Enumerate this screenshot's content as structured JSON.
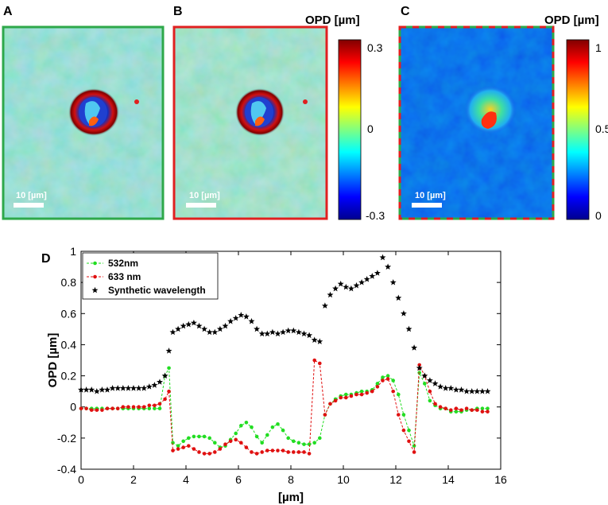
{
  "panels": {
    "a": {
      "letter": "A",
      "scale_bar": "10 [µm]",
      "border_color": "#2ea84a"
    },
    "b": {
      "letter": "B",
      "scale_bar": "10 [µm]",
      "border_color": "#e02020"
    },
    "c": {
      "letter": "C",
      "scale_bar": "10 [µm]",
      "border_colors": [
        "#e02020",
        "#2ea84a"
      ]
    },
    "d": {
      "letter": "D"
    }
  },
  "colorbar_ab": {
    "title": "OPD [µm]",
    "ticks": [
      "0.3",
      "0",
      "-0.3"
    ],
    "range": [
      -0.3,
      0.3
    ]
  },
  "colorbar_c": {
    "title": "OPD [µm]",
    "ticks": [
      "1",
      "0.5",
      "0"
    ],
    "range": [
      0,
      1
    ]
  },
  "chart_data": {
    "type": "line",
    "title": "",
    "xlabel": "[µm]",
    "ylabel": "OPD [µm]",
    "xlim": [
      0,
      16
    ],
    "ylim": [
      -0.4,
      1.0
    ],
    "xticks": [
      0,
      2,
      4,
      6,
      8,
      10,
      12,
      14,
      16
    ],
    "yticks": [
      -0.4,
      -0.2,
      0,
      0.2,
      0.4,
      0.6,
      0.8,
      1
    ],
    "legend_position": "top-left",
    "series": [
      {
        "name": "532nm",
        "color": "#22dd22",
        "marker": "dot",
        "x": [
          0,
          0.2,
          0.4,
          0.6,
          0.8,
          1.0,
          1.2,
          1.4,
          1.6,
          1.8,
          2.0,
          2.2,
          2.4,
          2.6,
          2.8,
          3.0,
          3.2,
          3.35,
          3.5,
          3.7,
          3.9,
          4.1,
          4.3,
          4.5,
          4.7,
          4.9,
          5.1,
          5.3,
          5.5,
          5.7,
          5.9,
          6.1,
          6.3,
          6.5,
          6.7,
          6.9,
          7.1,
          7.3,
          7.5,
          7.7,
          7.9,
          8.1,
          8.3,
          8.5,
          8.7,
          8.9,
          9.1,
          9.3,
          9.5,
          9.7,
          9.9,
          10.1,
          10.3,
          10.5,
          10.7,
          10.9,
          11.1,
          11.3,
          11.5,
          11.7,
          11.9,
          12.1,
          12.3,
          12.5,
          12.7,
          12.9,
          13.1,
          13.3,
          13.5,
          13.7,
          13.9,
          14.1,
          14.3,
          14.5,
          14.7,
          14.9,
          15.1,
          15.3,
          15.5
        ],
        "y": [
          -0.01,
          -0.01,
          -0.01,
          -0.01,
          -0.01,
          -0.01,
          -0.01,
          -0.01,
          -0.01,
          -0.01,
          -0.01,
          -0.01,
          -0.01,
          -0.01,
          -0.01,
          -0.01,
          0.2,
          0.25,
          -0.23,
          -0.25,
          -0.22,
          -0.2,
          -0.19,
          -0.19,
          -0.19,
          -0.2,
          -0.23,
          -0.26,
          -0.25,
          -0.21,
          -0.17,
          -0.12,
          -0.1,
          -0.13,
          -0.19,
          -0.23,
          -0.18,
          -0.13,
          -0.11,
          -0.15,
          -0.2,
          -0.22,
          -0.23,
          -0.24,
          -0.24,
          -0.23,
          -0.2,
          -0.05,
          0.02,
          0.05,
          0.07,
          0.08,
          0.08,
          0.09,
          0.1,
          0.1,
          0.11,
          0.15,
          0.19,
          0.2,
          0.17,
          0.08,
          -0.05,
          -0.15,
          -0.25,
          0.22,
          0.15,
          0.04,
          0.01,
          -0.01,
          -0.01,
          -0.03,
          -0.03,
          -0.03,
          -0.02,
          -0.02,
          -0.01,
          -0.01,
          -0.01
        ]
      },
      {
        "name": "633 nm",
        "color": "#e01010",
        "marker": "dot",
        "x": [
          0,
          0.2,
          0.4,
          0.6,
          0.8,
          1.0,
          1.2,
          1.4,
          1.6,
          1.8,
          2.0,
          2.2,
          2.4,
          2.6,
          2.8,
          3.0,
          3.2,
          3.35,
          3.5,
          3.7,
          3.9,
          4.1,
          4.3,
          4.5,
          4.7,
          4.9,
          5.1,
          5.3,
          5.5,
          5.7,
          5.9,
          6.1,
          6.3,
          6.5,
          6.7,
          6.9,
          7.1,
          7.3,
          7.5,
          7.7,
          7.9,
          8.1,
          8.3,
          8.5,
          8.7,
          8.9,
          9.1,
          9.3,
          9.5,
          9.7,
          9.9,
          10.1,
          10.3,
          10.5,
          10.7,
          10.9,
          11.1,
          11.3,
          11.5,
          11.7,
          11.9,
          12.1,
          12.3,
          12.5,
          12.7,
          12.9,
          13.1,
          13.3,
          13.5,
          13.7,
          13.9,
          14.1,
          14.3,
          14.5,
          14.7,
          14.9,
          15.1,
          15.3,
          15.5
        ],
        "y": [
          -0.01,
          -0.01,
          -0.02,
          -0.02,
          -0.02,
          -0.01,
          -0.01,
          -0.01,
          0.0,
          0.0,
          0.0,
          0.0,
          0.0,
          0.01,
          0.01,
          0.02,
          0.05,
          0.1,
          -0.28,
          -0.27,
          -0.26,
          -0.25,
          -0.27,
          -0.29,
          -0.3,
          -0.3,
          -0.29,
          -0.27,
          -0.24,
          -0.22,
          -0.21,
          -0.23,
          -0.26,
          -0.29,
          -0.3,
          -0.29,
          -0.28,
          -0.28,
          -0.28,
          -0.28,
          -0.29,
          -0.29,
          -0.29,
          -0.29,
          -0.3,
          0.3,
          0.28,
          -0.05,
          0.02,
          0.04,
          0.06,
          0.06,
          0.07,
          0.08,
          0.08,
          0.09,
          0.1,
          0.13,
          0.17,
          0.18,
          0.1,
          -0.05,
          -0.15,
          -0.22,
          -0.29,
          0.27,
          0.2,
          0.1,
          0.02,
          0.0,
          -0.01,
          -0.02,
          -0.01,
          -0.02,
          -0.01,
          -0.02,
          -0.02,
          -0.03,
          -0.03
        ]
      },
      {
        "name": "Synthetic wavelength",
        "color": "#000000",
        "marker": "star",
        "x": [
          0,
          0.2,
          0.4,
          0.6,
          0.8,
          1.0,
          1.2,
          1.4,
          1.6,
          1.8,
          2.0,
          2.2,
          2.4,
          2.6,
          2.8,
          3.0,
          3.2,
          3.35,
          3.5,
          3.7,
          3.9,
          4.1,
          4.3,
          4.5,
          4.7,
          4.9,
          5.1,
          5.3,
          5.5,
          5.7,
          5.9,
          6.1,
          6.3,
          6.5,
          6.7,
          6.9,
          7.1,
          7.3,
          7.5,
          7.7,
          7.9,
          8.1,
          8.3,
          8.5,
          8.7,
          8.9,
          9.1,
          9.3,
          9.5,
          9.7,
          9.9,
          10.1,
          10.3,
          10.5,
          10.7,
          10.9,
          11.1,
          11.3,
          11.5,
          11.7,
          11.9,
          12.1,
          12.3,
          12.5,
          12.7,
          12.9,
          13.1,
          13.3,
          13.5,
          13.7,
          13.9,
          14.1,
          14.3,
          14.5,
          14.7,
          14.9,
          15.1,
          15.3,
          15.5
        ],
        "y": [
          0.11,
          0.11,
          0.11,
          0.1,
          0.11,
          0.11,
          0.12,
          0.12,
          0.12,
          0.12,
          0.12,
          0.12,
          0.12,
          0.13,
          0.14,
          0.16,
          0.2,
          0.36,
          0.48,
          0.5,
          0.52,
          0.53,
          0.54,
          0.52,
          0.5,
          0.48,
          0.48,
          0.5,
          0.52,
          0.55,
          0.57,
          0.59,
          0.58,
          0.55,
          0.5,
          0.47,
          0.47,
          0.48,
          0.47,
          0.48,
          0.49,
          0.49,
          0.48,
          0.47,
          0.46,
          0.43,
          0.42,
          0.65,
          0.72,
          0.76,
          0.79,
          0.77,
          0.76,
          0.78,
          0.8,
          0.82,
          0.84,
          0.86,
          0.96,
          0.9,
          0.8,
          0.7,
          0.6,
          0.5,
          0.38,
          0.25,
          0.2,
          0.17,
          0.15,
          0.13,
          0.12,
          0.12,
          0.11,
          0.11,
          0.1,
          0.1,
          0.1,
          0.1,
          0.1
        ]
      }
    ]
  }
}
